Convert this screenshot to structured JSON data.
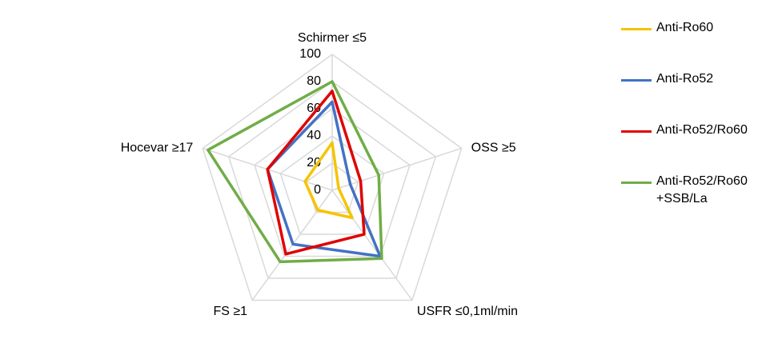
{
  "chart_data": {
    "type": "radar",
    "categories": [
      "Schirmer ≤5",
      "OSS ≥5",
      "USFR ≤0,1ml/min",
      "FS ≥1",
      "Hocevar ≥17"
    ],
    "rlim": [
      0,
      100
    ],
    "rticks": [
      0,
      20,
      40,
      60,
      80,
      100
    ],
    "grid": true,
    "series": [
      {
        "name": "Anti-Ro60",
        "color": "#f5c400",
        "values": [
          35,
          5,
          25,
          18,
          21
        ]
      },
      {
        "name": "Anti-Ro52",
        "color": "#4472c4",
        "values": [
          65,
          14,
          60,
          49,
          50
        ]
      },
      {
        "name": "Anti-Ro52/Ro60",
        "color": "#e00000",
        "values": [
          73,
          22,
          40,
          58,
          50
        ]
      },
      {
        "name": "Anti-Ro52/Ro60 +SSB/La",
        "color": "#70ad47",
        "values": [
          80,
          36,
          62,
          65,
          96
        ]
      }
    ]
  }
}
